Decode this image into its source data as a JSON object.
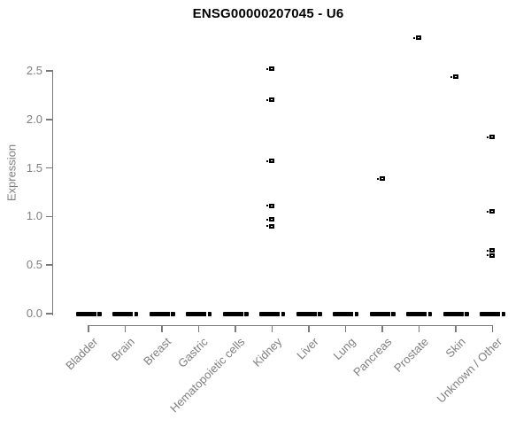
{
  "figure": {
    "background": "#ffffff"
  },
  "chart_data": {
    "type": "scatter",
    "subtype": "strip-plot",
    "title": "ENSG00000207045 - U6",
    "xlabel": "",
    "ylabel": "Expression",
    "categories": [
      "Bladder",
      "Brain",
      "Breast",
      "Gastric",
      "Hematopoietic cells",
      "Kidney",
      "Liver",
      "Lung",
      "Pancreas",
      "Prostate",
      "Skin",
      "Unknown / Other"
    ],
    "ytick_labels": [
      "0.0",
      "0.5",
      "1.0",
      "1.5",
      "2.0",
      "2.5"
    ],
    "ytick_values": [
      0.0,
      0.5,
      1.0,
      1.5,
      2.0,
      2.5
    ],
    "ylim": [
      0.0,
      2.9
    ],
    "grid": false,
    "legend": "none",
    "marker": "open-square",
    "series": [
      {
        "category": "Bladder",
        "zero_cluster": true,
        "values": []
      },
      {
        "category": "Brain",
        "zero_cluster": true,
        "values": []
      },
      {
        "category": "Breast",
        "zero_cluster": true,
        "values": []
      },
      {
        "category": "Gastric",
        "zero_cluster": true,
        "values": []
      },
      {
        "category": "Hematopoietic cells",
        "zero_cluster": true,
        "values": []
      },
      {
        "category": "Kidney",
        "zero_cluster": true,
        "values": [
          2.52,
          2.2,
          1.57,
          1.11,
          0.97,
          0.9
        ]
      },
      {
        "category": "Liver",
        "zero_cluster": true,
        "values": []
      },
      {
        "category": "Lung",
        "zero_cluster": true,
        "values": []
      },
      {
        "category": "Pancreas",
        "zero_cluster": true,
        "values": [
          1.39
        ]
      },
      {
        "category": "Prostate",
        "zero_cluster": true,
        "values": [
          2.84
        ]
      },
      {
        "category": "Skin",
        "zero_cluster": true,
        "values": [
          2.44
        ]
      },
      {
        "category": "Unknown / Other",
        "zero_cluster": true,
        "values": [
          1.82,
          1.05,
          0.65,
          0.6
        ]
      }
    ],
    "zero_cluster_value": 0.0,
    "colors": {
      "point": "#000000",
      "axis": "#7a7a7a",
      "axis_text": "#7e7e7e",
      "title": "#000000",
      "background": "#ffffff"
    }
  }
}
